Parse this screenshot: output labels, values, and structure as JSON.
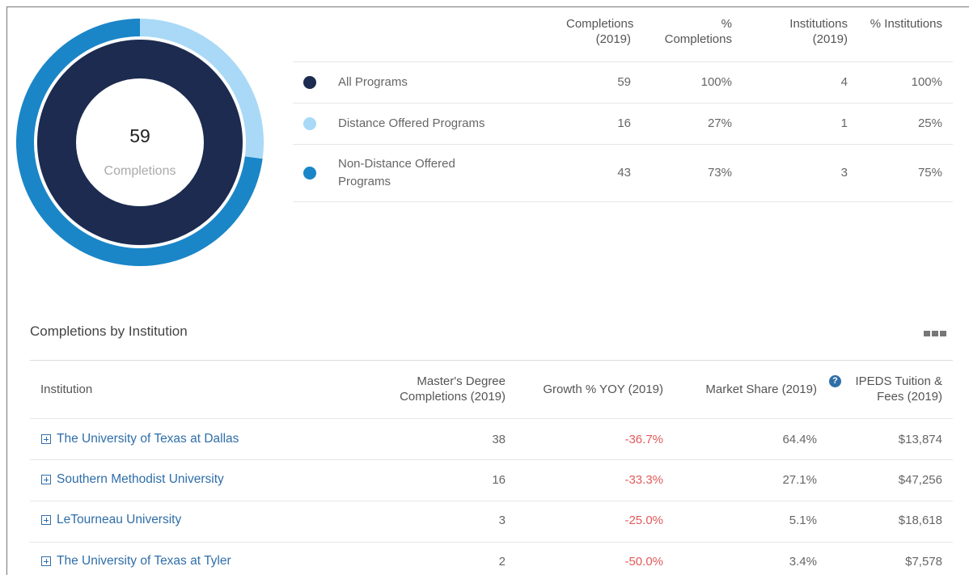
{
  "summary": {
    "headers": [
      "Completions (2019)",
      "% Completions",
      "Institutions (2019)",
      "% Institutions"
    ],
    "center_label": "Completions",
    "rows": [
      {
        "label": "All Programs",
        "color": "#1c2b4f",
        "completions": 59,
        "pct_completions": "100%",
        "institutions": 4,
        "pct_institutions": "100%"
      },
      {
        "label": "Distance Offered Programs",
        "color": "#a9d9f7",
        "completions": 16,
        "pct_completions": "27%",
        "institutions": 1,
        "pct_institutions": "25%"
      },
      {
        "label": "Non-Distance Offered Programs",
        "color": "#1a86c7",
        "completions": 43,
        "pct_completions": "73%",
        "institutions": 3,
        "pct_institutions": "75%"
      }
    ]
  },
  "institutions": {
    "title": "Completions by Institution",
    "headers": [
      "Institution",
      "Master's Degree Completions (2019)",
      "Growth % YOY (2019)",
      "Market Share (2019)",
      "IPEDS Tuition & Fees (2019)"
    ],
    "rows": [
      {
        "name": "The University of Texas at Dallas",
        "completions": 38,
        "growth": "-36.7%",
        "share": "64.4%",
        "tuition": "$13,874"
      },
      {
        "name": "Southern Methodist University",
        "completions": 16,
        "growth": "-33.3%",
        "share": "27.1%",
        "tuition": "$47,256"
      },
      {
        "name": "LeTourneau University",
        "completions": 3,
        "growth": "-25.0%",
        "share": "5.1%",
        "tuition": "$18,618"
      },
      {
        "name": "The University of Texas at Tyler",
        "completions": 2,
        "growth": "-50.0%",
        "share": "3.4%",
        "tuition": "$7,578"
      }
    ]
  }
}
